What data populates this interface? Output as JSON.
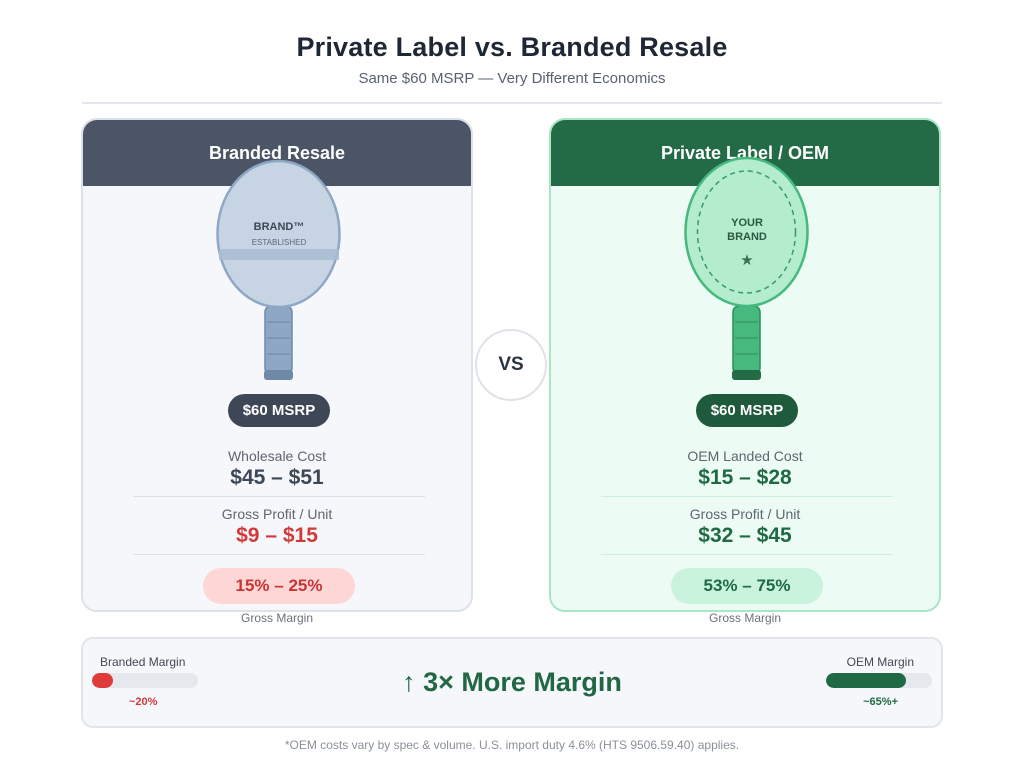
{
  "header": {
    "title": "Private Label vs. Branded Resale",
    "subtitle": "Same $60 MSRP — Very Different Economics"
  },
  "branded": {
    "heading": "Branded Resale",
    "racket_brand": "BRAND™",
    "racket_tagline": "ESTABLISHED",
    "msrp": "$60 MSRP",
    "cost_label": "Wholesale Cost",
    "cost_value": "$45 – $51",
    "profit_label": "Gross Profit / Unit",
    "profit_value": "$9 – $15",
    "margin_value": "15% – 25%",
    "margin_caption": "Gross Margin"
  },
  "private_label": {
    "heading": "Private Label / OEM",
    "racket_line1": "YOUR",
    "racket_line2": "BRAND",
    "racket_star": "★",
    "msrp": "$60 MSRP",
    "cost_label": "OEM Landed Cost",
    "cost_value": "$15 – $28",
    "profit_label": "Gross Profit / Unit",
    "profit_value": "$32 – $45",
    "margin_value": "53% – 75%",
    "margin_caption": "Gross Margin"
  },
  "vs_label": "VS",
  "comparison": {
    "branded_label": "Branded Margin",
    "branded_value": "~20%",
    "branded_fill": 0.2,
    "headline": "↑ 3× More Margin",
    "oem_label": "OEM Margin",
    "oem_value": "~65%+",
    "oem_fill": 0.75
  },
  "footnote": "*OEM costs vary by spec & volume. U.S. import duty 4.6% (HTS 9506.59.40) applies.",
  "colors": {
    "branded_dark": "#4b5566",
    "oem_dark": "#236b47",
    "accent_red": "#d23a3a",
    "accent_green": "#1f6a44"
  }
}
